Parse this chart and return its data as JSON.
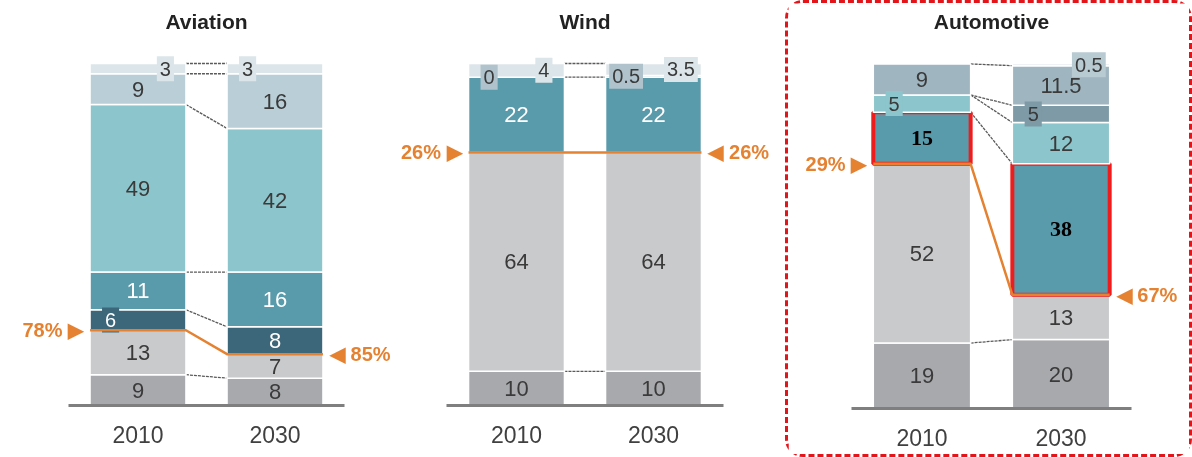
{
  "chart_data": [
    {
      "type": "bar",
      "title": "Aviation",
      "categories": [
        "2010",
        "2030"
      ],
      "stacked": true,
      "tick_labels": "x",
      "series": [
        {
          "color": "#a8a9ac",
          "values": [
            9,
            8
          ],
          "value_labels": [
            "9",
            "8"
          ]
        },
        {
          "color": "#c9cacc",
          "values": [
            13,
            7
          ],
          "value_labels": [
            "13",
            "7"
          ]
        },
        {
          "color": "#3c6679",
          "values": [
            6,
            8
          ],
          "value_labels": [
            "6",
            "8"
          ]
        },
        {
          "color": "#5a9bab",
          "values": [
            11,
            16
          ],
          "value_labels": [
            "11",
            "16"
          ]
        },
        {
          "color": "#8cc5cb",
          "values": [
            49,
            42
          ],
          "value_labels": [
            "49",
            "42"
          ]
        },
        {
          "color": "#b9ced6",
          "values": [
            9,
            16
          ],
          "value_labels": [
            "9",
            "16"
          ]
        },
        {
          "color": "#dce6ea",
          "values": [
            3,
            3
          ],
          "value_labels": [
            "3",
            "3"
          ]
        }
      ],
      "annotations": [
        {
          "text": "78% ▶",
          "x": "2010",
          "y": 22
        },
        {
          "text": "◀ 85%",
          "x": "2030",
          "y": 15
        }
      ]
    },
    {
      "type": "bar",
      "title": "Wind",
      "categories": [
        "2010",
        "2030"
      ],
      "stacked": true,
      "tick_labels": "x",
      "series": [
        {
          "color": "#a8a9ac",
          "values": [
            10,
            10
          ],
          "value_labels": [
            "10",
            "10"
          ]
        },
        {
          "color": "#c9cacc",
          "values": [
            64,
            64
          ],
          "value_labels": [
            "64",
            "64"
          ]
        },
        {
          "color": "#5a9bab",
          "values": [
            22,
            22
          ],
          "value_labels": [
            "22",
            "22"
          ]
        },
        {
          "color": "#b0c3cc",
          "values": [
            0,
            0.5
          ],
          "value_labels": [
            "0",
            "0.5"
          ]
        },
        {
          "color": "#dce5e9",
          "values": [
            4,
            3.5
          ],
          "value_labels": [
            "4",
            "3.5"
          ]
        }
      ],
      "annotations": [
        {
          "text": "26% ▶",
          "x": "2010",
          "y": 74
        },
        {
          "text": "◀ 26%",
          "x": "2030",
          "y": 74
        }
      ]
    },
    {
      "type": "bar",
      "title": "Automotive",
      "categories": [
        "2010",
        "2030"
      ],
      "stacked": true,
      "tick_labels": "x",
      "series": [
        {
          "color": "#a8a9ac",
          "values": [
            19,
            20
          ],
          "value_labels": [
            "19",
            "20"
          ]
        },
        {
          "color": "#c9cacc",
          "values": [
            52,
            13
          ],
          "value_labels": [
            "52",
            "13"
          ]
        },
        {
          "color": "#5a9bab",
          "values": [
            15,
            38
          ],
          "value_labels": [
            "15",
            "38"
          ]
        },
        {
          "color": "#8cc5cb",
          "values": [
            5,
            12
          ],
          "value_labels": [
            "5",
            "12"
          ]
        },
        {
          "color": "#7e9aa7",
          "values": [
            null,
            5
          ],
          "value_labels": [
            null,
            "5"
          ]
        },
        {
          "color": "#9fb5c0",
          "values": [
            9,
            11.5
          ],
          "value_labels": [
            "9",
            "11.5"
          ]
        },
        {
          "color": "#b8cbd3",
          "values": [
            null,
            0.5
          ],
          "value_labels": [
            null,
            "0.5"
          ]
        }
      ],
      "annotations": [
        {
          "text": "29% ▶",
          "x": "2010",
          "y": 71
        },
        {
          "text": "◀ 67%",
          "x": "2030",
          "y": 33
        }
      ]
    }
  ]
}
